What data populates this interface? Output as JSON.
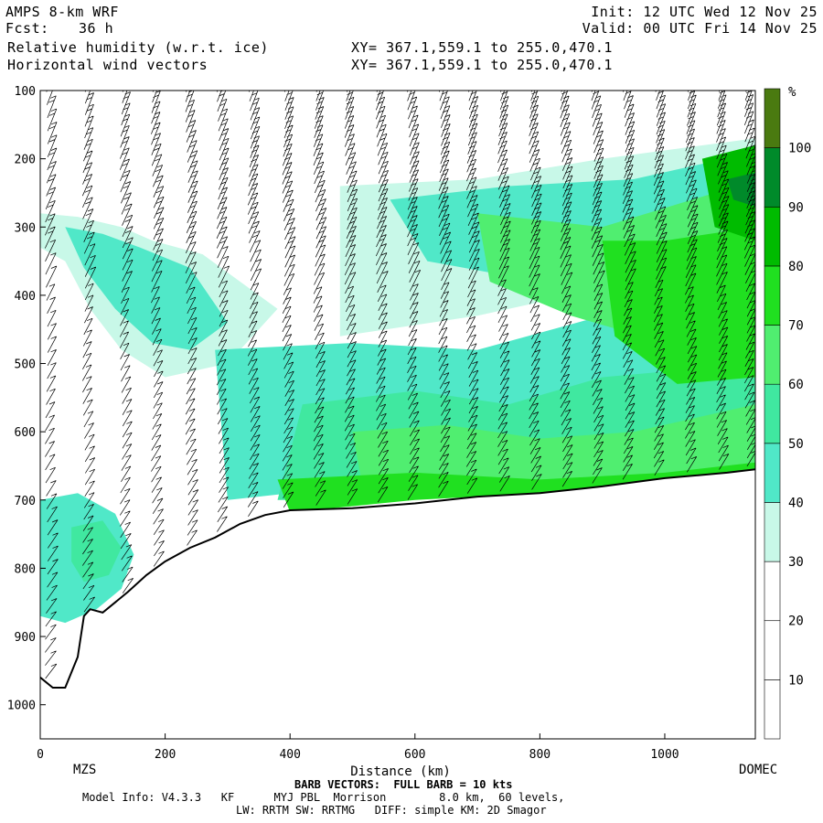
{
  "header": {
    "model": "AMPS 8-km WRF",
    "fcst_label": "Fcst:",
    "fcst_value": "36 h",
    "field1": "Relative humidity (w.r.t. ice)",
    "field2": "Horizontal wind vectors",
    "xy1": "XY= 367.1,559.1 to 255.0,470.1",
    "xy2": "XY= 367.1,559.1 to 255.0,470.1",
    "init": "Init: 12 UTC Wed 12 Nov 25",
    "valid": "Valid: 00 UTC Fri 14 Nov 25"
  },
  "footer": {
    "barb_note": "BARB VECTORS:  FULL BARB = 10 kts",
    "model_info": "Model Info: V4.3.3   KF      MYJ PBL  Morrison        8.0 km,  60 levels,",
    "physics": "LW: RRTM SW: RRTMG   DIFF: simple KM: 2D Smagor"
  },
  "chart_data": {
    "type": "heatmap",
    "xlabel": "Distance (km)",
    "ylabel": "",
    "x_ticks": [
      0,
      200,
      400,
      600,
      800,
      1000
    ],
    "y_ticks": [
      100,
      200,
      300,
      400,
      500,
      600,
      700,
      800,
      900,
      1000
    ],
    "xlim": [
      0,
      1145
    ],
    "ylim": [
      1050,
      100
    ],
    "endpoint_labels": {
      "left": "MZS",
      "right": "DOMEC"
    },
    "colorbar": {
      "unit": "%",
      "ticks": [
        10,
        20,
        30,
        40,
        50,
        60,
        70,
        80,
        90,
        100
      ],
      "colors": [
        "#ffffff",
        "#ffffff",
        "#ffffff",
        "#c8f8e8",
        "#50e8c8",
        "#40e8a0",
        "#50ee70",
        "#20e020",
        "#00bb00",
        "#008a2a",
        "#4a7a10"
      ]
    },
    "terrain": {
      "x_km": [
        0,
        20,
        40,
        60,
        70,
        80,
        100,
        120,
        140,
        170,
        200,
        240,
        280,
        320,
        360,
        400,
        500,
        600,
        700,
        800,
        900,
        1000,
        1100,
        1145
      ],
      "p_hpa": [
        960,
        975,
        975,
        930,
        870,
        860,
        865,
        850,
        835,
        810,
        790,
        770,
        755,
        735,
        722,
        715,
        712,
        705,
        695,
        690,
        680,
        668,
        660,
        655
      ]
    },
    "rh_regions": [
      {
        "x": [
          0,
          60,
          130,
          180,
          260,
          380,
          300,
          200,
          130,
          80,
          40,
          0
        ],
        "p": [
          280,
          285,
          300,
          320,
          340,
          420,
          500,
          520,
          480,
          420,
          350,
          330
        ],
        "value": 35
      },
      {
        "x": [
          40,
          100,
          160,
          240,
          300,
          240,
          180,
          120,
          70
        ],
        "p": [
          300,
          310,
          330,
          360,
          440,
          480,
          470,
          420,
          360
        ],
        "value": 45
      },
      {
        "x": [
          0,
          60,
          120,
          150,
          130,
          90,
          40,
          0
        ],
        "p": [
          700,
          690,
          720,
          780,
          830,
          860,
          880,
          870
        ],
        "value": 40
      },
      {
        "x": [
          50,
          100,
          130,
          110,
          70,
          50
        ],
        "p": [
          740,
          730,
          770,
          810,
          820,
          790
        ],
        "value": 50
      },
      {
        "x": [
          280,
          500,
          700,
          900,
          1145,
          1145,
          900,
          700,
          500,
          300
        ],
        "p": [
          480,
          470,
          480,
          430,
          430,
          640,
          650,
          660,
          680,
          700
        ],
        "value": 40
      },
      {
        "x": [
          420,
          600,
          750,
          900,
          1145,
          1145,
          900,
          700,
          500,
          380
        ],
        "p": [
          560,
          540,
          560,
          520,
          500,
          650,
          660,
          680,
          700,
          700
        ],
        "value": 50
      },
      {
        "x": [
          500,
          650,
          800,
          950,
          1145,
          1145,
          950,
          700,
          520
        ],
        "p": [
          600,
          590,
          610,
          600,
          560,
          650,
          665,
          680,
          700
        ],
        "value": 65
      },
      {
        "x": [
          380,
          600,
          800,
          1000,
          1145,
          1145,
          1000,
          800,
          600,
          400
        ],
        "p": [
          670,
          660,
          670,
          660,
          645,
          660,
          670,
          690,
          700,
          718
        ],
        "value": 75
      },
      {
        "x": [
          480,
          700,
          900,
          1145,
          1145,
          900,
          700,
          480
        ],
        "p": [
          240,
          230,
          200,
          170,
          380,
          390,
          430,
          460
        ],
        "value": 35
      },
      {
        "x": [
          560,
          750,
          950,
          1145,
          1145,
          950,
          800,
          620
        ],
        "p": [
          260,
          240,
          230,
          190,
          330,
          360,
          380,
          350
        ],
        "value": 45
      },
      {
        "x": [
          700,
          900,
          1080,
          1145,
          1145,
          1000,
          850,
          720
        ],
        "p": [
          280,
          300,
          250,
          220,
          480,
          470,
          430,
          380
        ],
        "value": 60
      },
      {
        "x": [
          900,
          1000,
          1145,
          1145,
          1020,
          920
        ],
        "p": [
          320,
          320,
          300,
          520,
          530,
          460
        ],
        "value": 70
      },
      {
        "x": [
          1060,
          1145,
          1145,
          1080
        ],
        "p": [
          200,
          180,
          320,
          300
        ],
        "value": 85
      },
      {
        "x": [
          1100,
          1145,
          1145,
          1110
        ],
        "p": [
          230,
          220,
          270,
          260
        ],
        "value": 95
      }
    ],
    "barb_columns_km": [
      10,
      70,
      130,
      180,
      235,
      285,
      335,
      390,
      440,
      490,
      540,
      590,
      640,
      685,
      735,
      785,
      835,
      885,
      935,
      985,
      1035,
      1085,
      1130
    ]
  }
}
